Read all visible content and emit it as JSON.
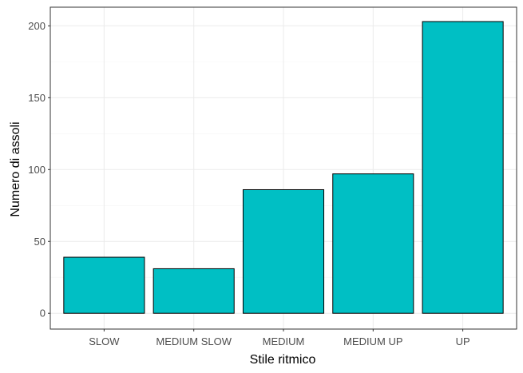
{
  "chart_data": {
    "type": "bar",
    "categories": [
      "SLOW",
      "MEDIUM SLOW",
      "MEDIUM",
      "MEDIUM UP",
      "UP"
    ],
    "values": [
      39,
      31,
      86,
      97,
      203
    ],
    "title": "",
    "xlabel": "Stile ritmico",
    "ylabel": "Numero di assoli",
    "ylim": [
      -11,
      213
    ],
    "yticks": [
      0,
      50,
      100,
      150,
      200
    ],
    "grid": true,
    "legend": "none",
    "colors": {
      "bar_fill": "#00BFC4",
      "bar_stroke": "#000000",
      "grid_major": "#ebebeb",
      "grid_minor": "#f5f5f5",
      "panel_border": "#333333"
    }
  }
}
